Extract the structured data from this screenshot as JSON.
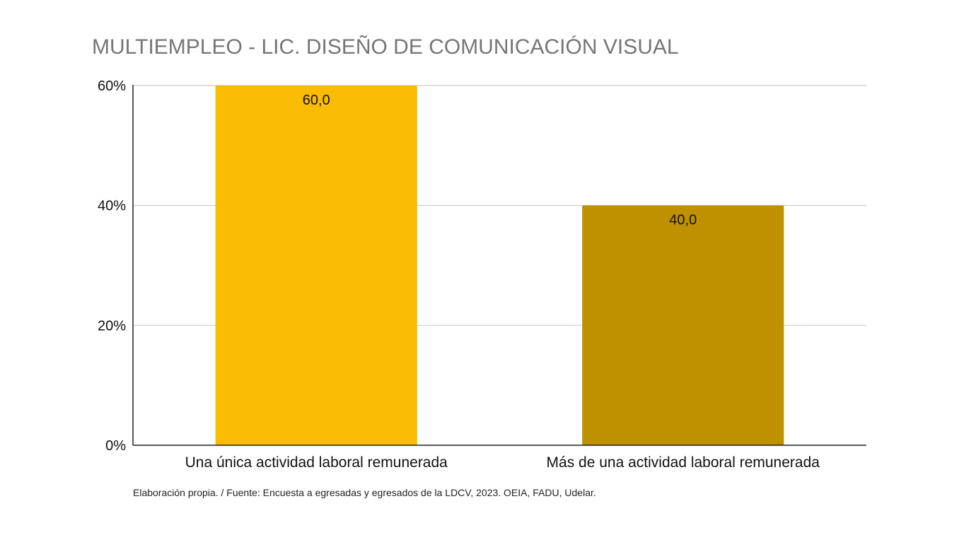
{
  "chart_data": {
    "type": "bar",
    "title": "MULTIEMPLEO - LIC. DISEÑO DE COMUNICACIÓN VISUAL",
    "categories": [
      "Una única actividad laboral remunerada",
      "Más de una actividad laboral remunerada"
    ],
    "values": [
      60.0,
      40.0
    ],
    "data_labels": [
      "60,0",
      "40,0"
    ],
    "colors": [
      "#f9bc02",
      "#bf9000"
    ],
    "ylim": [
      0,
      60
    ],
    "yticks": [
      0,
      20,
      40,
      60
    ],
    "ytick_labels": [
      "0%",
      "20%",
      "40%",
      "60%"
    ],
    "xlabel": "",
    "ylabel": "",
    "grid": true,
    "legend": "none"
  },
  "source_note": "Elaboración propia. / Fuente: Encuesta a egresadas y egresados de la LDCV, 2023. OEIA, FADU, Udelar."
}
